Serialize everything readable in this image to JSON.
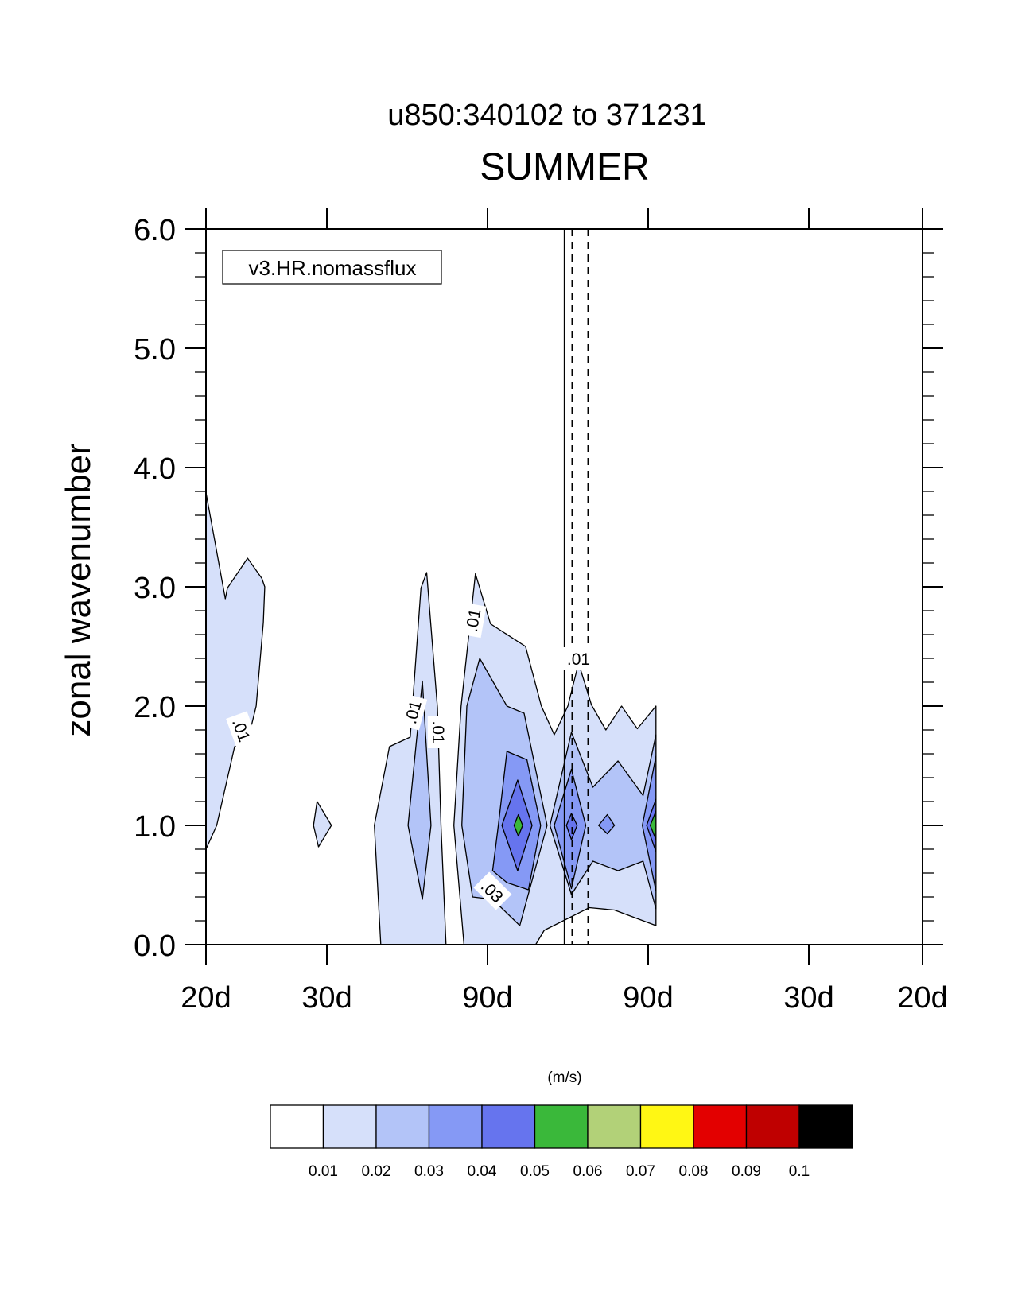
{
  "chart_data": {
    "type": "heatmap",
    "title_top": "u850:340102 to 371231",
    "title": "SUMMER",
    "ylabel": "zonal wavenumber",
    "xlabel": "",
    "legend_label": "v3.HR.nomassflux",
    "units": "(m/s)",
    "ylim": [
      0,
      6
    ],
    "y_ticks": [
      "0.0",
      "1.0",
      "2.0",
      "3.0",
      "4.0",
      "5.0",
      "6.0"
    ],
    "x_tick_labels": [
      "20d",
      "30d",
      "90d",
      "90d",
      "30d",
      "20d"
    ],
    "colorbar": {
      "levels": [
        "0.01",
        "0.02",
        "0.03",
        "0.04",
        "0.05",
        "0.06",
        "0.07",
        "0.08",
        "0.09",
        "0.1"
      ],
      "colors": [
        "#ffffff",
        "#d6e0fa",
        "#b3c4f8",
        "#8599f5",
        "#6674ee",
        "#3ab83a",
        "#b2d178",
        "#fff714",
        "#e30000",
        "#bf0000",
        "#000000"
      ]
    },
    "contour_labels": [
      ".01",
      ".01",
      ".01",
      ".01",
      ".01",
      ".03"
    ],
    "regions": [
      {
        "level": 0.01,
        "points": [
          [
            -0.5,
            0.8
          ],
          [
            -0.485,
            1.0
          ],
          [
            -0.46,
            1.66
          ],
          [
            -0.443,
            1.68
          ],
          [
            -0.43,
            2.0
          ],
          [
            -0.42,
            2.7
          ],
          [
            -0.418,
            3.0
          ],
          [
            -0.422,
            3.07
          ],
          [
            -0.442,
            3.24
          ],
          [
            -0.47,
            2.99
          ],
          [
            -0.473,
            2.9
          ],
          [
            -0.5,
            3.79
          ]
        ]
      },
      {
        "level": 0.01,
        "points": [
          [
            -0.35,
            1.0
          ],
          [
            -0.345,
            1.2
          ],
          [
            -0.325,
            1.0
          ],
          [
            -0.343,
            0.82
          ]
        ]
      },
      {
        "level": 0.01,
        "points": [
          [
            -0.235,
            0.0
          ],
          [
            -0.165,
            0.0
          ],
          [
            -0.172,
            1.0
          ],
          [
            -0.177,
            1.99
          ],
          [
            -0.192,
            3.12
          ],
          [
            -0.2,
            2.99
          ],
          [
            -0.215,
            1.74
          ],
          [
            -0.244,
            1.66
          ],
          [
            -0.265,
            1.0
          ],
          [
            -0.256,
            0.0
          ]
        ]
      },
      {
        "level": 0.01,
        "points": [
          [
            -0.14,
            0.0
          ],
          [
            -0.154,
            1.0
          ],
          [
            -0.144,
            2.0
          ],
          [
            -0.124,
            3.11
          ],
          [
            -0.103,
            2.69
          ],
          [
            -0.054,
            2.5
          ],
          [
            -0.032,
            2.0
          ],
          [
            -0.014,
            1.76
          ],
          [
            0.005,
            2.0
          ],
          [
            0.02,
            2.36
          ],
          [
            0.038,
            2.01
          ],
          [
            0.058,
            1.8
          ],
          [
            0.08,
            2.0
          ],
          [
            0.102,
            1.81
          ],
          [
            0.128,
            2.0
          ],
          [
            0.128,
            0.16
          ],
          [
            0.07,
            0.29
          ],
          [
            0.035,
            0.31
          ],
          [
            -0.028,
            0.12
          ],
          [
            -0.04,
            0.0
          ]
        ]
      },
      {
        "level": 0.02,
        "points": [
          [
            -0.198,
            0.38
          ],
          [
            -0.186,
            1.0
          ],
          [
            -0.198,
            2.21
          ],
          [
            -0.218,
            1.0
          ]
        ]
      },
      {
        "level": 0.02,
        "points": [
          [
            -0.128,
            0.4
          ],
          [
            -0.143,
            1.0
          ],
          [
            -0.136,
            2.0
          ],
          [
            -0.118,
            2.4
          ],
          [
            -0.08,
            2.0
          ],
          [
            -0.056,
            1.94
          ],
          [
            -0.024,
            1.0
          ],
          [
            -0.062,
            0.16
          ],
          [
            -0.1,
            0.38
          ]
        ]
      },
      {
        "level": 0.02,
        "points": [
          [
            -0.02,
            1.0
          ],
          [
            0.01,
            1.78
          ],
          [
            0.04,
            1.32
          ],
          [
            0.075,
            1.54
          ],
          [
            0.11,
            1.25
          ],
          [
            0.128,
            1.76
          ],
          [
            0.128,
            0.3
          ],
          [
            0.11,
            0.7
          ],
          [
            0.075,
            0.62
          ],
          [
            0.04,
            0.7
          ],
          [
            0.01,
            0.42
          ]
        ]
      },
      {
        "level": 0.03,
        "points": [
          [
            -0.1,
            0.62
          ],
          [
            -0.092,
            1.0
          ],
          [
            -0.08,
            1.62
          ],
          [
            -0.052,
            1.55
          ],
          [
            -0.033,
            1.0
          ],
          [
            -0.05,
            0.46
          ],
          [
            -0.08,
            0.52
          ]
        ]
      },
      {
        "level": 0.03,
        "points": [
          [
            -0.014,
            1.0
          ],
          [
            0.01,
            1.47
          ],
          [
            0.03,
            1.0
          ],
          [
            0.01,
            0.47
          ]
        ]
      },
      {
        "level": 0.03,
        "points": [
          [
            0.048,
            1.0
          ],
          [
            0.06,
            1.09
          ],
          [
            0.07,
            1.0
          ],
          [
            0.06,
            0.93
          ]
        ]
      },
      {
        "level": 0.03,
        "points": [
          [
            0.109,
            1.0
          ],
          [
            0.128,
            1.58
          ],
          [
            0.128,
            0.45
          ]
        ]
      },
      {
        "level": 0.04,
        "points": [
          [
            -0.087,
            1.0
          ],
          [
            -0.065,
            1.38
          ],
          [
            -0.045,
            1.0
          ],
          [
            -0.065,
            0.62
          ]
        ]
      },
      {
        "level": 0.04,
        "points": [
          [
            0.003,
            1.0
          ],
          [
            0.01,
            1.1
          ],
          [
            0.018,
            1.0
          ],
          [
            0.01,
            0.88
          ]
        ]
      },
      {
        "level": 0.04,
        "points": [
          [
            0.115,
            1.0
          ],
          [
            0.128,
            1.22
          ],
          [
            0.128,
            0.78
          ]
        ]
      },
      {
        "level": 0.05,
        "points": [
          [
            -0.07,
            1.0
          ],
          [
            -0.064,
            1.09
          ],
          [
            -0.058,
            1.0
          ],
          [
            -0.064,
            0.91
          ]
        ]
      },
      {
        "level": 0.05,
        "points": [
          [
            0.12,
            1.0
          ],
          [
            0.128,
            1.12
          ],
          [
            0.128,
            0.88
          ]
        ]
      }
    ]
  }
}
